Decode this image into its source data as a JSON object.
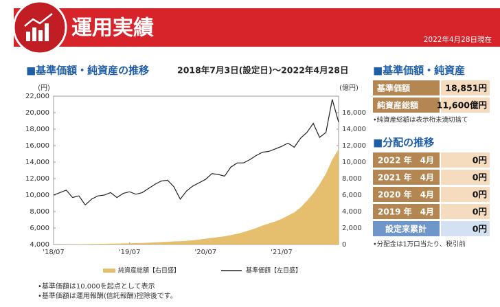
{
  "header": {
    "title": "運用実績",
    "date": "2022年4月28日現在"
  },
  "chart_section": {
    "heading": "■基準価額・純資産の推移",
    "period": "2018年7月3日(設定日)～2022年4月28日"
  },
  "chart_data": {
    "type": "line",
    "y_unit": "(円)",
    "y2_unit": "(億円)",
    "x": [
      "2018-07",
      "2018-08",
      "2018-09",
      "2018-10",
      "2018-11",
      "2018-12",
      "2019-01",
      "2019-02",
      "2019-03",
      "2019-04",
      "2019-05",
      "2019-06",
      "2019-07",
      "2019-08",
      "2019-09",
      "2019-10",
      "2019-11",
      "2019-12",
      "2020-01",
      "2020-02",
      "2020-03",
      "2020-04",
      "2020-05",
      "2020-06",
      "2020-07",
      "2020-08",
      "2020-09",
      "2020-10",
      "2020-11",
      "2020-12",
      "2021-01",
      "2021-02",
      "2021-03",
      "2021-04",
      "2021-05",
      "2021-06",
      "2021-07",
      "2021-08",
      "2021-09",
      "2021-10",
      "2021-11",
      "2021-12",
      "2022-01",
      "2022-02",
      "2022-03",
      "2022-04"
    ],
    "xticks": [
      {
        "value": "2018-07",
        "label": "'18/07"
      },
      {
        "value": "2019-07",
        "label": "'19/07"
      },
      {
        "value": "2020-07",
        "label": "'20/07"
      },
      {
        "value": "2021-07",
        "label": "'21/07"
      }
    ],
    "ylim": [
      4000,
      22000
    ],
    "yticks": [
      {
        "value": 4000,
        "label": "4,000"
      },
      {
        "value": 6000,
        "label": "6,000"
      },
      {
        "value": 8000,
        "label": "8,000"
      },
      {
        "value": 10000,
        "label": "10,000"
      },
      {
        "value": 12000,
        "label": "12,000"
      },
      {
        "value": 14000,
        "label": "14,000"
      },
      {
        "value": 16000,
        "label": "16,000"
      },
      {
        "value": 18000,
        "label": "18,000"
      },
      {
        "value": 20000,
        "label": "20,000"
      },
      {
        "value": 22000,
        "label": "22,000"
      }
    ],
    "y2lim": [
      0,
      18000
    ],
    "y2ticks": [
      0,
      {
        "value": 2000,
        "label": "2,000"
      },
      {
        "value": 4000,
        "label": "4,000"
      },
      {
        "value": 6000,
        "label": "6,000"
      },
      {
        "value": 8000,
        "label": "8,000"
      },
      {
        "value": 10000,
        "label": "10,000"
      },
      {
        "value": 12000,
        "label": "12,000"
      },
      {
        "value": 14000,
        "label": "14,000"
      },
      {
        "value": 16000,
        "label": "16,000"
      }
    ],
    "series": [
      {
        "name": "純資産総額【右目盛】",
        "type": "area",
        "axis": "y2",
        "color": "#e5bf6e",
        "values": [
          0,
          10,
          20,
          30,
          40,
          50,
          60,
          70,
          80,
          100,
          110,
          130,
          150,
          170,
          190,
          220,
          250,
          290,
          330,
          380,
          400,
          450,
          520,
          600,
          700,
          800,
          900,
          1000,
          1150,
          1300,
          1500,
          1750,
          2000,
          2300,
          2550,
          2800,
          3100,
          3500,
          3900,
          4500,
          5300,
          6200,
          7300,
          8600,
          10300,
          11600
        ]
      },
      {
        "name": "基準価額【左目盛】",
        "type": "line",
        "color": "#222222",
        "values": [
          10000,
          10300,
          10600,
          9700,
          9900,
          8800,
          9500,
          9900,
          10000,
          10300,
          9700,
          10200,
          10400,
          10100,
          10300,
          10800,
          11300,
          11700,
          11800,
          11000,
          9500,
          10500,
          11100,
          11500,
          11900,
          12600,
          12500,
          12300,
          13400,
          13900,
          13900,
          14300,
          14800,
          15200,
          15300,
          15600,
          15900,
          16300,
          15800,
          16900,
          17600,
          18700,
          17000,
          17600,
          21600,
          18851
        ]
      }
    ]
  },
  "price_table": {
    "heading": "■基準価額・純資産",
    "rows": [
      [
        "基準価額",
        "18,851円"
      ],
      [
        "純資産総額",
        "11,600億円"
      ]
    ],
    "note": "•純資産総額は表示桁未満切捨て"
  },
  "distribution_table": {
    "heading": "■分配の推移",
    "rows": [
      [
        "2022 年　4月",
        "0円"
      ],
      [
        "2021 年　4月",
        "0円"
      ],
      [
        "2020 年　4月",
        "0円"
      ],
      [
        "2019 年　4月",
        "0円"
      ],
      [
        "設定来累計",
        "0円"
      ]
    ],
    "note": "•分配金は1万口当たり、税引前"
  },
  "notes": [
    "•基準価額は10,000を起点として表示",
    "•基準価額は運用報酬(信託報酬)控除後です。"
  ]
}
